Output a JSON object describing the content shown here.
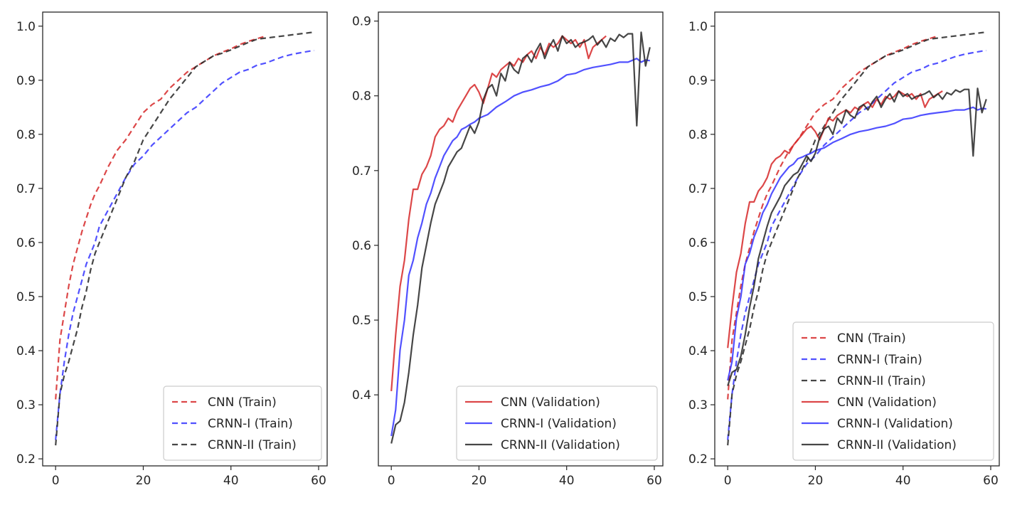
{
  "chart_data": [
    {
      "type": "line",
      "title": "",
      "xlabel": "",
      "ylabel": "",
      "xlim": [
        -2.95,
        61.95
      ],
      "ylim": [
        0.187,
        1.026
      ],
      "xticks": [
        0,
        20,
        40,
        60
      ],
      "yticks": [
        0.2,
        0.3,
        0.4,
        0.5,
        0.6,
        0.7,
        0.8,
        0.9,
        1.0
      ],
      "grid": false,
      "legend_placement": "lower-right",
      "series": [
        {
          "name": "CNN (Train)",
          "color": "#d62728",
          "style": "dashed",
          "x": [
            0,
            1,
            2,
            3,
            4,
            5,
            6,
            7,
            8,
            9,
            10,
            12,
            14,
            16,
            18,
            20,
            22,
            24,
            26,
            28,
            30,
            32,
            34,
            36,
            38,
            40,
            42,
            44,
            46,
            48
          ],
          "y": [
            0.31,
            0.42,
            0.47,
            0.52,
            0.56,
            0.59,
            0.62,
            0.645,
            0.67,
            0.69,
            0.705,
            0.74,
            0.77,
            0.79,
            0.815,
            0.84,
            0.855,
            0.865,
            0.885,
            0.9,
            0.915,
            0.925,
            0.935,
            0.945,
            0.952,
            0.958,
            0.966,
            0.972,
            0.977,
            0.982
          ]
        },
        {
          "name": "CRNN-I (Train)",
          "color": "#3333ff",
          "style": "dashed",
          "x": [
            0,
            1,
            2,
            3,
            4,
            5,
            6,
            7,
            8,
            9,
            10,
            12,
            14,
            16,
            18,
            20,
            22,
            24,
            26,
            28,
            30,
            32,
            34,
            36,
            38,
            40,
            42,
            44,
            46,
            48,
            50,
            52,
            54,
            56,
            58,
            59
          ],
          "y": [
            0.235,
            0.32,
            0.38,
            0.43,
            0.47,
            0.5,
            0.53,
            0.56,
            0.58,
            0.6,
            0.63,
            0.66,
            0.69,
            0.72,
            0.745,
            0.76,
            0.78,
            0.795,
            0.81,
            0.825,
            0.84,
            0.85,
            0.865,
            0.88,
            0.895,
            0.905,
            0.915,
            0.92,
            0.928,
            0.932,
            0.938,
            0.944,
            0.948,
            0.951,
            0.954,
            0.955
          ]
        },
        {
          "name": "CRNN-II (Train)",
          "color": "#262626",
          "style": "dashed",
          "x": [
            0,
            1,
            2,
            3,
            4,
            5,
            6,
            7,
            8,
            9,
            10,
            12,
            14,
            16,
            18,
            20,
            22,
            24,
            26,
            28,
            30,
            32,
            34,
            36,
            38,
            40,
            42,
            44,
            46,
            48,
            50,
            52,
            54,
            56,
            58,
            59
          ],
          "y": [
            0.225,
            0.32,
            0.355,
            0.38,
            0.41,
            0.44,
            0.48,
            0.51,
            0.55,
            0.58,
            0.6,
            0.64,
            0.68,
            0.72,
            0.75,
            0.79,
            0.815,
            0.84,
            0.865,
            0.885,
            0.905,
            0.925,
            0.935,
            0.945,
            0.95,
            0.956,
            0.963,
            0.97,
            0.976,
            0.978,
            0.98,
            0.982,
            0.984,
            0.986,
            0.988,
            0.989
          ]
        }
      ],
      "legend": [
        "CNN (Train)",
        "CRNN-I (Train)",
        "CRNN-II (Train)"
      ]
    },
    {
      "type": "line",
      "title": "",
      "xlabel": "",
      "ylabel": "",
      "xlim": [
        -2.95,
        61.95
      ],
      "ylim": [
        0.305,
        0.912
      ],
      "xticks": [
        0,
        20,
        40,
        60
      ],
      "yticks": [
        0.4,
        0.5,
        0.6,
        0.7,
        0.8,
        0.9
      ],
      "grid": false,
      "legend_placement": "lower-right",
      "series": [
        {
          "name": "CNN (Validation)",
          "color": "#d62728",
          "style": "solid",
          "x": [
            0,
            1,
            2,
            3,
            4,
            5,
            6,
            7,
            8,
            9,
            10,
            11,
            12,
            13,
            14,
            15,
            16,
            17,
            18,
            19,
            20,
            21,
            22,
            23,
            24,
            25,
            26,
            27,
            28,
            29,
            30,
            31,
            32,
            33,
            34,
            35,
            36,
            37,
            38,
            39,
            40,
            41,
            42,
            43,
            44,
            45,
            46,
            47,
            48,
            49
          ],
          "y": [
            0.405,
            0.48,
            0.545,
            0.58,
            0.635,
            0.675,
            0.675,
            0.695,
            0.705,
            0.72,
            0.745,
            0.755,
            0.76,
            0.77,
            0.765,
            0.78,
            0.79,
            0.8,
            0.81,
            0.815,
            0.805,
            0.79,
            0.81,
            0.83,
            0.825,
            0.835,
            0.84,
            0.845,
            0.84,
            0.85,
            0.845,
            0.855,
            0.86,
            0.85,
            0.865,
            0.855,
            0.87,
            0.865,
            0.87,
            0.88,
            0.875,
            0.87,
            0.875,
            0.865,
            0.875,
            0.85,
            0.865,
            0.87,
            0.875,
            0.88
          ]
        },
        {
          "name": "CRNN-I (Validation)",
          "color": "#3333ff",
          "style": "solid",
          "x": [
            0,
            1,
            2,
            3,
            4,
            5,
            6,
            7,
            8,
            9,
            10,
            11,
            12,
            13,
            14,
            15,
            16,
            17,
            18,
            19,
            20,
            22,
            24,
            26,
            28,
            30,
            32,
            34,
            36,
            38,
            40,
            42,
            44,
            46,
            48,
            50,
            52,
            54,
            56,
            57,
            58,
            59
          ],
          "y": [
            0.345,
            0.38,
            0.46,
            0.5,
            0.56,
            0.58,
            0.61,
            0.63,
            0.655,
            0.67,
            0.69,
            0.705,
            0.72,
            0.73,
            0.74,
            0.745,
            0.755,
            0.758,
            0.762,
            0.765,
            0.77,
            0.775,
            0.785,
            0.792,
            0.8,
            0.805,
            0.808,
            0.812,
            0.815,
            0.82,
            0.828,
            0.83,
            0.835,
            0.838,
            0.84,
            0.842,
            0.845,
            0.845,
            0.85,
            0.845,
            0.848,
            0.847
          ]
        },
        {
          "name": "CRNN-II (Validation)",
          "color": "#262626",
          "style": "solid",
          "x": [
            0,
            1,
            2,
            3,
            4,
            5,
            6,
            7,
            8,
            9,
            10,
            11,
            12,
            13,
            14,
            15,
            16,
            17,
            18,
            19,
            20,
            21,
            22,
            23,
            24,
            25,
            26,
            27,
            28,
            29,
            30,
            31,
            32,
            33,
            34,
            35,
            36,
            37,
            38,
            39,
            40,
            41,
            42,
            43,
            44,
            45,
            46,
            47,
            48,
            49,
            50,
            51,
            52,
            53,
            54,
            55,
            56,
            57,
            58,
            59
          ],
          "y": [
            0.335,
            0.36,
            0.365,
            0.39,
            0.43,
            0.48,
            0.52,
            0.57,
            0.6,
            0.63,
            0.655,
            0.67,
            0.685,
            0.705,
            0.715,
            0.725,
            0.73,
            0.745,
            0.76,
            0.75,
            0.765,
            0.795,
            0.81,
            0.815,
            0.8,
            0.83,
            0.82,
            0.845,
            0.835,
            0.83,
            0.85,
            0.855,
            0.845,
            0.86,
            0.87,
            0.85,
            0.865,
            0.875,
            0.86,
            0.88,
            0.87,
            0.875,
            0.865,
            0.87,
            0.872,
            0.875,
            0.88,
            0.868,
            0.875,
            0.865,
            0.877,
            0.873,
            0.882,
            0.878,
            0.883,
            0.883,
            0.76,
            0.885,
            0.84,
            0.865
          ]
        }
      ],
      "legend": [
        "CNN (Validation)",
        "CRNN-I (Validation)",
        "CRNN-II (Validation)"
      ]
    },
    {
      "type": "line",
      "title": "",
      "xlabel": "",
      "ylabel": "",
      "xlim": [
        -2.95,
        61.95
      ],
      "ylim": [
        0.187,
        1.026
      ],
      "xticks": [
        0,
        20,
        40,
        60
      ],
      "yticks": [
        0.2,
        0.3,
        0.4,
        0.5,
        0.6,
        0.7,
        0.8,
        0.9,
        1.0
      ],
      "grid": false,
      "legend_placement": "lower-right",
      "series_ref": [
        "CNN (Train)",
        "CRNN-I (Train)",
        "CRNN-II (Train)",
        "CNN (Validation)",
        "CRNN-I (Validation)",
        "CRNN-II (Validation)"
      ],
      "legend": [
        "CNN (Train)",
        "CRNN-I (Train)",
        "CRNN-II (Train)",
        "CNN (Validation)",
        "CRNN-I (Validation)",
        "CRNN-II (Validation)"
      ]
    }
  ]
}
